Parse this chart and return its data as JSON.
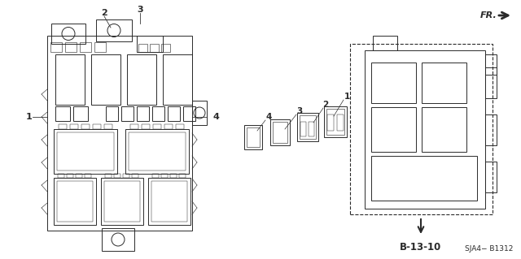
{
  "bg_color": "#ffffff",
  "part_code": "SJA4− B1312",
  "ref_code": "B-13-10",
  "fr_label": "FR.",
  "line_color": "#2a2a2a",
  "lw": 0.7
}
